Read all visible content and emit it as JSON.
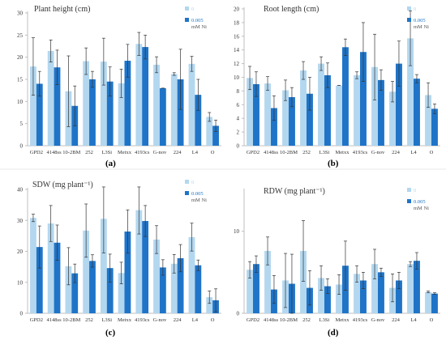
{
  "colors": {
    "light": "#b3d7ef",
    "dark": "#1f74c8",
    "axis": "#bfbfbf",
    "error": "#333333"
  },
  "chart_data": [
    {
      "type": "bar",
      "panel_letter": "(a)",
      "title": "Plant height (cm)",
      "ylabel": "",
      "xlabel": "",
      "ylim": [
        0,
        30
      ],
      "yticks": [
        0,
        5,
        10,
        15,
        20,
        25,
        30
      ],
      "legend_position": "top-right",
      "legend_unit": "mM Ni",
      "categories": [
        "GPD2",
        "4148ss",
        "10-2BM",
        "252",
        "L3Si",
        "Metxx",
        "4193cs",
        "G-nov",
        "224",
        "L4",
        "O"
      ],
      "series": [
        {
          "name": "0",
          "values": [
            17.9,
            21.4,
            12.3,
            19.1,
            19.0,
            14.1,
            23.0,
            18.3,
            16.2,
            18.5,
            6.5
          ],
          "errors": [
            6.5,
            2.5,
            8.0,
            3.0,
            5.3,
            3.2,
            2.6,
            1.8,
            0.3,
            1.7,
            1.0
          ]
        },
        {
          "name": "0.005",
          "values": [
            14.0,
            17.7,
            9.0,
            15.0,
            14.5,
            19.2,
            22.3,
            13.0,
            15.0,
            11.5,
            4.5
          ],
          "errors": [
            2.8,
            3.9,
            4.5,
            1.8,
            3.3,
            3.7,
            2.7,
            0.0,
            6.8,
            3.5,
            1.3
          ]
        }
      ]
    },
    {
      "type": "bar",
      "panel_letter": "(b)",
      "title": "Root length (cm)",
      "ylabel": "",
      "xlabel": "",
      "ylim": [
        0,
        20
      ],
      "yticks": [
        0,
        2,
        4,
        6,
        8,
        10,
        12,
        14,
        16,
        18,
        20
      ],
      "legend_position": "top-right",
      "legend_unit": "mM Ni",
      "categories": [
        "GPD2",
        "4148ss",
        "10-2BM",
        "252",
        "L3Si",
        "Metxx",
        "4193cs",
        "G-nov",
        "224",
        "L4",
        "O"
      ],
      "series": [
        {
          "name": "0",
          "values": [
            9.9,
            9.1,
            8.1,
            11.0,
            12.0,
            8.8,
            10.3,
            11.5,
            7.9,
            15.7,
            7.4
          ],
          "errors": [
            1.7,
            1.0,
            1.5,
            1.3,
            1.0,
            0.0,
            0.5,
            4.8,
            1.5,
            4.0,
            1.8
          ]
        },
        {
          "name": "0.005",
          "values": [
            9.0,
            5.5,
            7.1,
            7.6,
            10.3,
            14.4,
            13.7,
            9.6,
            12.0,
            9.8,
            5.4
          ],
          "errors": [
            1.8,
            1.8,
            1.4,
            2.4,
            1.8,
            1.2,
            4.3,
            1.5,
            3.3,
            0.6,
            0.7
          ]
        }
      ]
    },
    {
      "type": "bar",
      "panel_letter": "(c)",
      "title": "SDW (mg plant⁻¹)",
      "ylabel": "",
      "xlabel": "",
      "ylim": [
        0,
        40
      ],
      "yticks": [
        0,
        10,
        20,
        30,
        40
      ],
      "legend_position": "top-right",
      "legend_unit": "mM Ni",
      "categories": [
        "GPD2",
        "4148ss",
        "10-2BM",
        "252",
        "L3Si",
        "Metxx",
        "4193cs",
        "G-nov",
        "224",
        "L4",
        "O"
      ],
      "series": [
        {
          "name": "0",
          "values": [
            30.8,
            29.0,
            15.2,
            26.7,
            30.5,
            13.0,
            33.3,
            23.8,
            16.0,
            24.6,
            5.2
          ],
          "errors": [
            1.2,
            5.8,
            6.0,
            8.6,
            11.0,
            3.5,
            7.7,
            4.5,
            3.0,
            4.5,
            2.0
          ]
        },
        {
          "name": "0.005",
          "values": [
            21.4,
            22.8,
            12.9,
            16.9,
            14.6,
            26.4,
            29.8,
            14.8,
            17.8,
            15.5,
            4.2
          ],
          "errors": [
            6.8,
            5.7,
            3.0,
            2.0,
            4.5,
            7.0,
            5.0,
            2.5,
            4.4,
            1.7,
            3.7
          ]
        }
      ]
    },
    {
      "type": "bar",
      "panel_letter": "(d)",
      "title": "RDW (mg plant⁻¹)",
      "ylabel": "",
      "xlabel": "",
      "ylim": [
        0,
        15
      ],
      "yticks": [
        0,
        10
      ],
      "legend_position": "top-right",
      "legend_unit": "mM Ni",
      "categories": [
        "GPD2",
        "4148ss",
        "10-2BM",
        "252",
        "L3Si",
        "Metxx",
        "4193cs",
        "G-nov",
        "224",
        "L4",
        "O"
      ],
      "series": [
        {
          "name": "0",
          "values": [
            5.3,
            7.6,
            4.0,
            7.6,
            4.3,
            3.5,
            4.8,
            6.0,
            3.1,
            6.0,
            2.6
          ],
          "errors": [
            1.0,
            1.7,
            3.3,
            3.7,
            1.5,
            1.2,
            1.0,
            1.8,
            1.7,
            0.3,
            0.1
          ]
        },
        {
          "name": "0.005",
          "values": [
            6.0,
            2.9,
            3.6,
            3.1,
            3.3,
            5.8,
            4.0,
            5.0,
            4.0,
            6.4,
            2.4
          ],
          "errors": [
            1.0,
            1.7,
            3.6,
            2.1,
            0.9,
            3.0,
            1.0,
            0.5,
            1.0,
            1.0,
            0.1
          ]
        }
      ]
    }
  ]
}
